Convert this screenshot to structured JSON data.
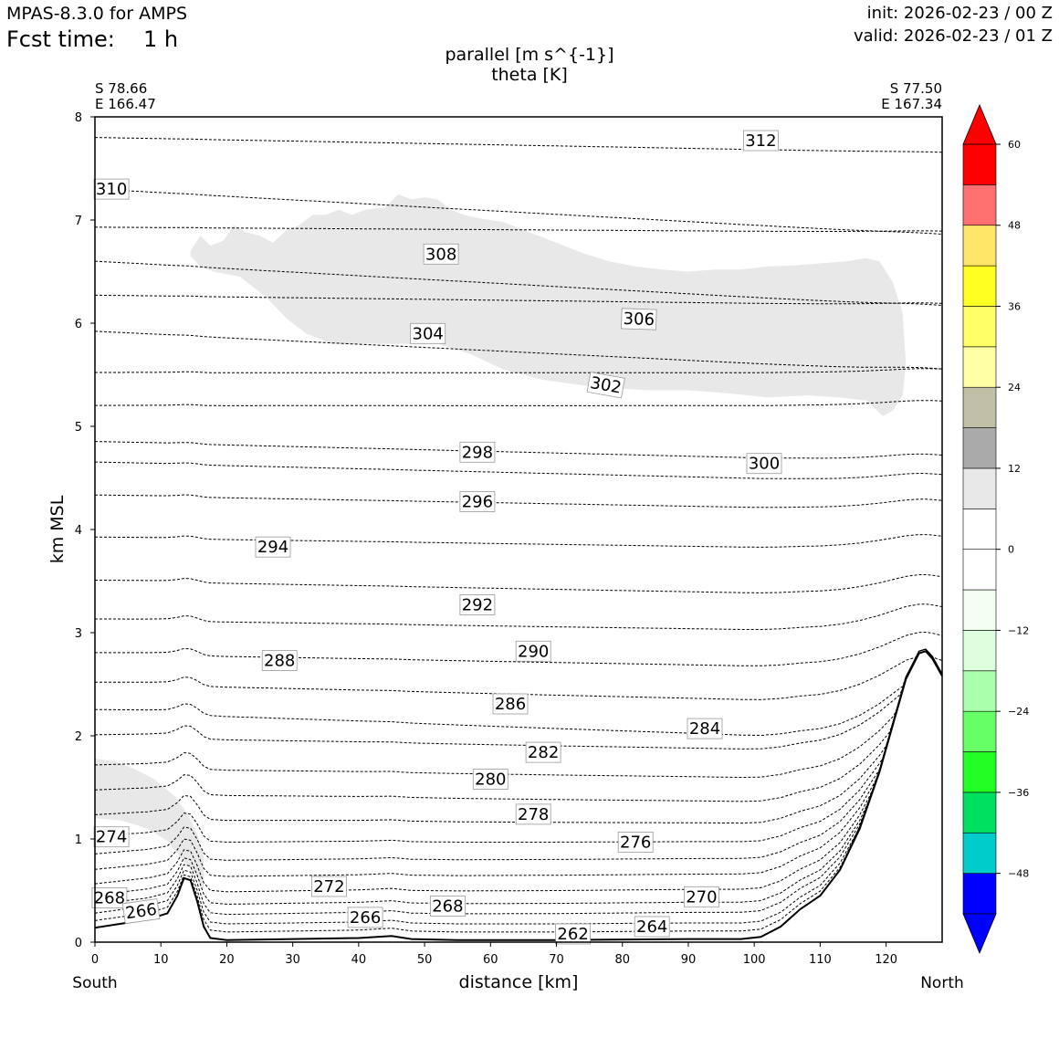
{
  "header": {
    "app": "MPAS-8.3.0 for AMPS",
    "fcst_label": "Fcst time:",
    "fcst_value": "1 h",
    "init": "init: 2026-02-23 / 00 Z",
    "valid": "valid: 2026-02-23 / 01 Z"
  },
  "endpoints": {
    "left_lat": "S 78.66",
    "left_lon": "E 166.47",
    "right_lat": "S 77.50",
    "right_lon": "E 167.34"
  },
  "chart_data": {
    "type": "contour",
    "field_title": "parallel [m s^{-1}]",
    "contour_title": "theta [K]",
    "xlabel": "distance [km]",
    "ylabel": "km MSL",
    "xlim": [
      0,
      128.5
    ],
    "ylim": [
      0,
      8
    ],
    "xticks": [
      0,
      10,
      20,
      30,
      40,
      50,
      60,
      70,
      80,
      90,
      100,
      110,
      120
    ],
    "yticks": [
      0,
      1,
      2,
      3,
      4,
      5,
      6,
      7,
      8
    ],
    "x_left_label": "South",
    "x_right_label": "North",
    "terrain": [
      [
        0,
        0.14
      ],
      [
        4,
        0.18
      ],
      [
        8,
        0.22
      ],
      [
        11,
        0.28
      ],
      [
        12.5,
        0.45
      ],
      [
        13.5,
        0.62
      ],
      [
        14.5,
        0.6
      ],
      [
        15.5,
        0.4
      ],
      [
        16.5,
        0.15
      ],
      [
        17.5,
        0.04
      ],
      [
        20,
        0.02
      ],
      [
        30,
        0.03
      ],
      [
        40,
        0.04
      ],
      [
        45,
        0.06
      ],
      [
        48,
        0.03
      ],
      [
        55,
        0.02
      ],
      [
        70,
        0.02
      ],
      [
        90,
        0.03
      ],
      [
        98,
        0.03
      ],
      [
        101,
        0.05
      ],
      [
        104,
        0.15
      ],
      [
        107,
        0.32
      ],
      [
        110,
        0.45
      ],
      [
        113,
        0.7
      ],
      [
        116,
        1.1
      ],
      [
        119,
        1.65
      ],
      [
        121,
        2.1
      ],
      [
        123,
        2.55
      ],
      [
        125,
        2.8
      ],
      [
        126,
        2.82
      ],
      [
        127,
        2.75
      ],
      [
        128.5,
        2.58
      ]
    ],
    "shade_regions": [
      {
        "value_range": "6 to 12",
        "points": [
          [
            14.5,
            6.7
          ],
          [
            16,
            6.85
          ],
          [
            17.5,
            6.75
          ],
          [
            19.5,
            6.8
          ],
          [
            21,
            6.95
          ],
          [
            23,
            6.88
          ],
          [
            25,
            6.85
          ],
          [
            27,
            6.78
          ],
          [
            29,
            6.9
          ],
          [
            31,
            6.95
          ],
          [
            33,
            7.05
          ],
          [
            35,
            7.05
          ],
          [
            37,
            7.1
          ],
          [
            39,
            7.05
          ],
          [
            41,
            7.1
          ],
          [
            44,
            7.12
          ],
          [
            46,
            7.25
          ],
          [
            48,
            7.2
          ],
          [
            50,
            7.22
          ],
          [
            52,
            7.2
          ],
          [
            54,
            7.1
          ],
          [
            56,
            7.05
          ],
          [
            58,
            7.02
          ],
          [
            62,
            6.98
          ],
          [
            66,
            6.88
          ],
          [
            70,
            6.78
          ],
          [
            74,
            6.68
          ],
          [
            78,
            6.6
          ],
          [
            82,
            6.55
          ],
          [
            86,
            6.52
          ],
          [
            90,
            6.5
          ],
          [
            94,
            6.52
          ],
          [
            98,
            6.52
          ],
          [
            102,
            6.55
          ],
          [
            106,
            6.56
          ],
          [
            110,
            6.58
          ],
          [
            114,
            6.6
          ],
          [
            117,
            6.63
          ],
          [
            119,
            6.6
          ],
          [
            121,
            6.4
          ],
          [
            122.5,
            6.1
          ],
          [
            123,
            5.6
          ],
          [
            122.5,
            5.3
          ],
          [
            121,
            5.15
          ],
          [
            119.5,
            5.1
          ],
          [
            117,
            5.25
          ],
          [
            113,
            5.28
          ],
          [
            108,
            5.3
          ],
          [
            102,
            5.28
          ],
          [
            96,
            5.32
          ],
          [
            90,
            5.35
          ],
          [
            84,
            5.35
          ],
          [
            76,
            5.38
          ],
          [
            68,
            5.45
          ],
          [
            62,
            5.55
          ],
          [
            57,
            5.7
          ],
          [
            52,
            5.8
          ],
          [
            47,
            5.8
          ],
          [
            41,
            5.8
          ],
          [
            36,
            5.8
          ],
          [
            32,
            5.9
          ],
          [
            29,
            6.05
          ],
          [
            26,
            6.25
          ],
          [
            22,
            6.45
          ],
          [
            18,
            6.5
          ],
          [
            16,
            6.55
          ],
          [
            14.5,
            6.65
          ]
        ]
      },
      {
        "value_range": "6 to 12",
        "points": [
          [
            0,
            1.78
          ],
          [
            3,
            1.75
          ],
          [
            6,
            1.68
          ],
          [
            9,
            1.58
          ],
          [
            12,
            1.42
          ],
          [
            14,
            1.25
          ],
          [
            15.5,
            1.05
          ],
          [
            16.5,
            0.82
          ],
          [
            16.5,
            0.5
          ],
          [
            15,
            0.68
          ],
          [
            13.5,
            0.78
          ],
          [
            11,
            0.98
          ],
          [
            8,
            1.1
          ],
          [
            4,
            1.18
          ],
          [
            0,
            1.2
          ]
        ]
      }
    ],
    "theta_lines": [
      {
        "label": "312",
        "y0": 7.8,
        "drift": -0.15
      },
      {
        "label": "310",
        "y0": 7.3,
        "drift": -0.45
      },
      {
        "label": "",
        "y0": 6.93,
        "drift": -0.05
      },
      {
        "label": "308",
        "y0": 6.6,
        "drift": -0.45
      },
      {
        "label": "",
        "y0": 6.27,
        "drift": -0.1
      },
      {
        "label": "304",
        "y0": 5.92,
        "drift": -0.4
      },
      {
        "label": "306",
        "y0": 5.52,
        "drift": 0.0
      },
      {
        "label": "302",
        "y0": 5.2,
        "drift": 0.0
      },
      {
        "label": "298",
        "y0": 4.85,
        "drift": -0.2
      },
      {
        "label": "300",
        "y0": 4.65,
        "drift": -0.2
      },
      {
        "label": "296",
        "y0": 4.33,
        "drift": -0.15
      },
      {
        "label": "294",
        "y0": 3.92,
        "drift": -0.12
      },
      {
        "label": "",
        "y0": 3.5,
        "drift": -0.15
      },
      {
        "label": "292",
        "y0": 3.12,
        "drift": -0.12
      },
      {
        "label": "290",
        "y0": 2.79,
        "drift": -0.15
      },
      {
        "label": "288",
        "y0": 2.5,
        "drift": -0.2
      },
      {
        "label": "286",
        "y0": 2.23,
        "drift": -0.3
      },
      {
        "label": "284",
        "y0": 1.98,
        "drift": -0.15
      },
      {
        "label": "282",
        "y0": 1.68,
        "drift": -0.12
      },
      {
        "label": "280",
        "y0": 1.43,
        "drift": -0.1
      },
      {
        "label": "278",
        "y0": 1.18,
        "drift": -0.05
      },
      {
        "label": "276",
        "y0": 0.96,
        "drift": 0.0
      },
      {
        "label": "274",
        "y0": 0.78,
        "drift": 0.02
      },
      {
        "label": "272",
        "y0": 0.62,
        "drift": 0.03
      },
      {
        "label": "270",
        "y0": 0.47,
        "drift": 0.03
      },
      {
        "label": "268",
        "y0": 0.35,
        "drift": 0.02
      },
      {
        "label": "266",
        "y0": 0.25,
        "drift": 0.02
      },
      {
        "label": "264",
        "y0": 0.16,
        "drift": 0.0
      },
      {
        "label": "262",
        "y0": 0.08,
        "drift": 0.0
      }
    ],
    "contour_labels": [
      {
        "text": "312",
        "x": 101,
        "y": 7.77,
        "rot": 0
      },
      {
        "text": "310",
        "x": 2.5,
        "y": 7.3,
        "rot": 0
      },
      {
        "text": "308",
        "x": 52.5,
        "y": 6.67,
        "rot": 0
      },
      {
        "text": "306",
        "x": 82.5,
        "y": 6.04,
        "rot": 2
      },
      {
        "text": "304",
        "x": 50.5,
        "y": 5.9,
        "rot": 0
      },
      {
        "text": "302",
        "x": 77.5,
        "y": 5.4,
        "rot": 10
      },
      {
        "text": "298",
        "x": 58,
        "y": 4.75,
        "rot": 0
      },
      {
        "text": "300",
        "x": 101.5,
        "y": 4.64,
        "rot": 0
      },
      {
        "text": "296",
        "x": 58,
        "y": 4.27,
        "rot": 0
      },
      {
        "text": "294",
        "x": 27,
        "y": 3.83,
        "rot": 0
      },
      {
        "text": "292",
        "x": 58,
        "y": 3.27,
        "rot": 0
      },
      {
        "text": "290",
        "x": 66.5,
        "y": 2.82,
        "rot": 0
      },
      {
        "text": "288",
        "x": 28,
        "y": 2.73,
        "rot": 0
      },
      {
        "text": "286",
        "x": 63,
        "y": 2.31,
        "rot": 0
      },
      {
        "text": "284",
        "x": 92.5,
        "y": 2.07,
        "rot": 0
      },
      {
        "text": "282",
        "x": 68,
        "y": 1.84,
        "rot": 0
      },
      {
        "text": "280",
        "x": 60,
        "y": 1.58,
        "rot": 0
      },
      {
        "text": "278",
        "x": 66.5,
        "y": 1.24,
        "rot": 0
      },
      {
        "text": "276",
        "x": 82,
        "y": 0.97,
        "rot": 0
      },
      {
        "text": "274",
        "x": 2.5,
        "y": 1.02,
        "rot": 0
      },
      {
        "text": "272",
        "x": 35.5,
        "y": 0.54,
        "rot": 0
      },
      {
        "text": "270",
        "x": 92,
        "y": 0.44,
        "rot": 0
      },
      {
        "text": "268",
        "x": 2.2,
        "y": 0.43,
        "rot": 0
      },
      {
        "text": "268",
        "x": 53.5,
        "y": 0.35,
        "rot": 0
      },
      {
        "text": "266",
        "x": 7,
        "y": 0.3,
        "rot": -8
      },
      {
        "text": "266",
        "x": 41,
        "y": 0.24,
        "rot": 0
      },
      {
        "text": "264",
        "x": 84.5,
        "y": 0.15,
        "rot": 0
      },
      {
        "text": "262",
        "x": 72.5,
        "y": 0.08,
        "rot": 0
      }
    ],
    "colorbar": {
      "ticks": [
        "60",
        "48",
        "36",
        "24",
        "12",
        "0",
        "−12",
        "−24",
        "−36",
        "−48"
      ],
      "tick_values": [
        60,
        48,
        36,
        24,
        12,
        0,
        -12,
        -24,
        -36,
        -48
      ],
      "range": [
        -54,
        60
      ],
      "bins": [
        {
          "from": -54,
          "to": -48,
          "color": "#0000ff"
        },
        {
          "from": -48,
          "to": -42,
          "color": "#00cccc"
        },
        {
          "from": -42,
          "to": -36,
          "color": "#00e060"
        },
        {
          "from": -36,
          "to": -30,
          "color": "#22ff22"
        },
        {
          "from": -30,
          "to": -24,
          "color": "#66ff66"
        },
        {
          "from": -24,
          "to": -18,
          "color": "#aaffaa"
        },
        {
          "from": -18,
          "to": -12,
          "color": "#ddffdd"
        },
        {
          "from": -12,
          "to": -6,
          "color": "#f1fff1"
        },
        {
          "from": -6,
          "to": 0,
          "color": "#ffffff"
        },
        {
          "from": 0,
          "to": 6,
          "color": "#ffffff"
        },
        {
          "from": 6,
          "to": 12,
          "color": "#e8e8e8"
        },
        {
          "from": 12,
          "to": 18,
          "color": "#aaaaaa"
        },
        {
          "from": 18,
          "to": 24,
          "color": "#c0c0a6"
        },
        {
          "from": 24,
          "to": 30,
          "color": "#ffffa6"
        },
        {
          "from": 30,
          "to": 36,
          "color": "#ffff66"
        },
        {
          "from": 36,
          "to": 42,
          "color": "#ffff22"
        },
        {
          "from": 42,
          "to": 48,
          "color": "#ffe566"
        },
        {
          "from": 48,
          "to": 54,
          "color": "#ff7070"
        },
        {
          "from": 54,
          "to": 60,
          "color": "#ff0000"
        }
      ],
      "over_color": "#ff0000",
      "under_color": "#0000ff"
    }
  }
}
